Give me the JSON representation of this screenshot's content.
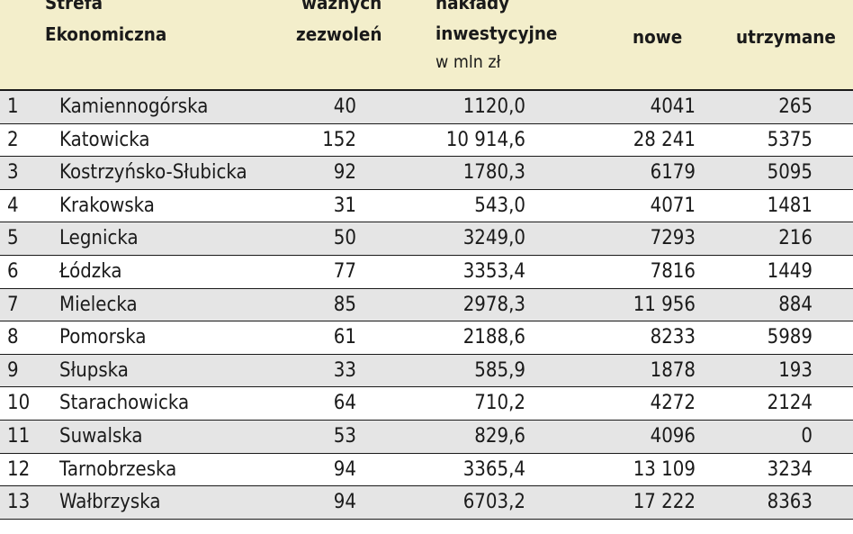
{
  "table": {
    "headers": {
      "zone_line1": "Strefa",
      "zone_line2": "Ekonomiczna",
      "permits_line1": "ważnych",
      "permits_line2": "zezwoleń",
      "invest_line1": "nakłady",
      "invest_line2": "inwestycyjne",
      "invest_unit": "w mln zł",
      "new_jobs": "nowe",
      "kept_jobs": "utrzymane"
    },
    "rows": [
      {
        "no": "1",
        "name": "Kamiennogórska",
        "permits": "40",
        "invest": "1120,0",
        "new": "4041",
        "kept": "265"
      },
      {
        "no": "2",
        "name": "Katowicka",
        "permits": "152",
        "invest": "10 914,6",
        "new": "28 241",
        "kept": "5375"
      },
      {
        "no": "3",
        "name": "Kostrzyńsko-Słubicka",
        "permits": "92",
        "invest": "1780,3",
        "new": "6179",
        "kept": "5095"
      },
      {
        "no": "4",
        "name": "Krakowska",
        "permits": "31",
        "invest": "543,0",
        "new": "4071",
        "kept": "1481"
      },
      {
        "no": "5",
        "name": "Legnicka",
        "permits": "50",
        "invest": "3249,0",
        "new": "7293",
        "kept": "216"
      },
      {
        "no": "6",
        "name": "Łódzka",
        "permits": "77",
        "invest": "3353,4",
        "new": "7816",
        "kept": "1449"
      },
      {
        "no": "7",
        "name": "Mielecka",
        "permits": "85",
        "invest": "2978,3",
        "new": "11 956",
        "kept": "884"
      },
      {
        "no": "8",
        "name": "Pomorska",
        "permits": "61",
        "invest": "2188,6",
        "new": "8233",
        "kept": "5989"
      },
      {
        "no": "9",
        "name": "Słupska",
        "permits": "33",
        "invest": "585,9",
        "new": "1878",
        "kept": "193"
      },
      {
        "no": "10",
        "name": "Starachowicka",
        "permits": "64",
        "invest": "710,2",
        "new": "4272",
        "kept": "2124"
      },
      {
        "no": "11",
        "name": "Suwalska",
        "permits": "53",
        "invest": "829,6",
        "new": "4096",
        "kept": "0"
      },
      {
        "no": "12",
        "name": "Tarnobrzeska",
        "permits": "94",
        "invest": "3365,4",
        "new": "13 109",
        "kept": "3234"
      },
      {
        "no": "13",
        "name": "Wałbrzyska",
        "permits": "94",
        "invest": "6703,2",
        "new": "17 222",
        "kept": "8363"
      }
    ]
  },
  "colors": {
    "header_bg": "#f3eecb",
    "row_shaded": "#e5e5e5",
    "row_plain": "#ffffff",
    "rule": "#1a1a1a"
  }
}
